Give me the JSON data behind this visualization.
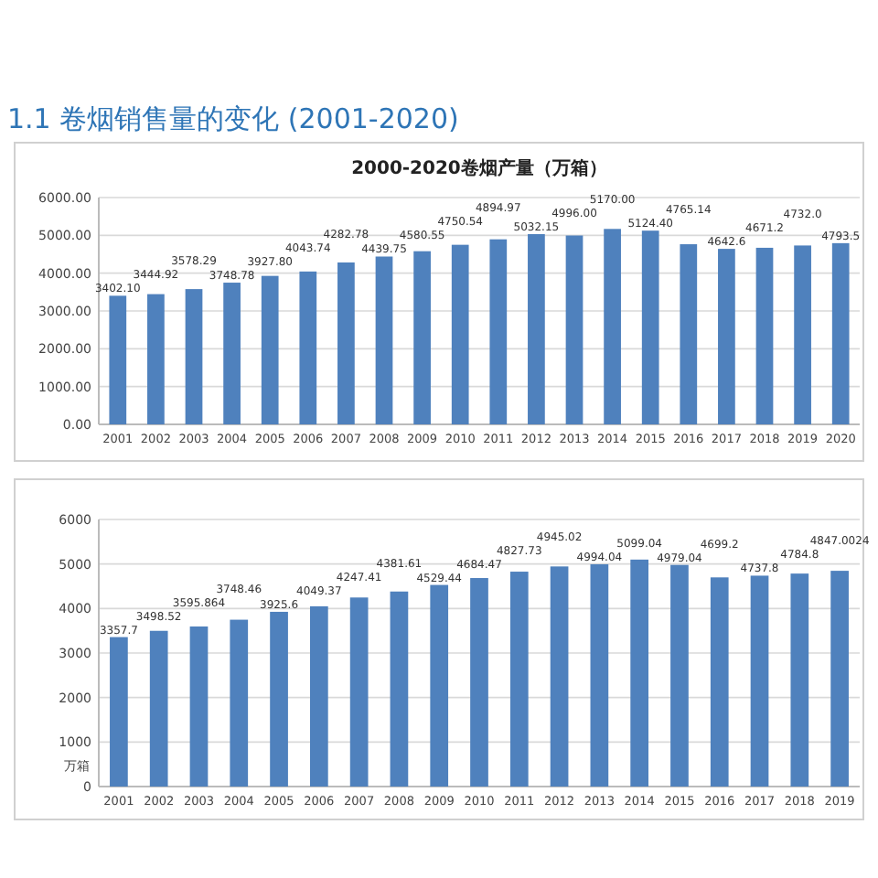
{
  "chart_data": [
    {
      "type": "bar",
      "title": "1.1 卷烟销售量的变化 (2001-2020)",
      "subtitle": "2000-2020卷烟产量（万箱）",
      "categories": [
        "2001",
        "2002",
        "2003",
        "2004",
        "2005",
        "2006",
        "2007",
        "2008",
        "2009",
        "2010",
        "2011",
        "2012",
        "2013",
        "2014",
        "2015",
        "2016",
        "2017",
        "2018",
        "2019",
        "2020"
      ],
      "values": [
        3402.1,
        3444.92,
        3578.29,
        3748.78,
        3927.8,
        4043.74,
        4282.78,
        4439.75,
        4580.55,
        4750.54,
        4894.97,
        5032.15,
        4996.0,
        5170.0,
        5124.4,
        4765.14,
        4642.6,
        4671.2,
        4732.0,
        4793.5
      ],
      "value_labels": [
        "3402.10",
        "3444.92",
        "3578.29",
        "3748.78",
        "3927.80",
        "4043.74",
        "4282.78",
        "4439.75",
        "4580.55",
        "4750.54",
        "4894.97",
        "5032.15",
        "4996.00",
        "5170.00",
        "5124.40",
        "4765.14",
        "4642.6",
        "4671.2",
        "4732.0",
        "4793.5"
      ],
      "color": "#4f81bd",
      "ylim": [
        0,
        6000
      ],
      "yticks": [
        {
          "value": 0,
          "label": "0.00"
        },
        {
          "value": 1000,
          "label": "1000.00"
        },
        {
          "value": 2000,
          "label": "2000.00"
        },
        {
          "value": 3000,
          "label": "3000.00"
        },
        {
          "value": 4000,
          "label": "4000.00"
        },
        {
          "value": 5000,
          "label": "5000.00"
        },
        {
          "value": 6000,
          "label": "6000.00"
        }
      ],
      "grid": "y"
    },
    {
      "type": "bar",
      "ylabel": "万箱",
      "categories": [
        "2001",
        "2002",
        "2003",
        "2004",
        "2005",
        "2006",
        "2007",
        "2008",
        "2009",
        "2010",
        "2011",
        "2012",
        "2013",
        "2014",
        "2015",
        "2016",
        "2017",
        "2018",
        "2019"
      ],
      "values": [
        3357.7,
        3498.52,
        3595.864,
        3748.46,
        3925.6,
        4049.37,
        4247.41,
        4381.61,
        4529.44,
        4684.47,
        4827.73,
        4945.02,
        4994.04,
        5099.04,
        4979.04,
        4699.2,
        4737.8,
        4784.8,
        4847.0024
      ],
      "value_labels": [
        "3357.7",
        "3498.52",
        "3595.864",
        "3748.46",
        "3925.6",
        "4049.37",
        "4247.41",
        "4381.61",
        "4529.44",
        "4684.47",
        "4827.73",
        "4945.02",
        "4994.04",
        "5099.04",
        "4979.04",
        "4699.2",
        "4737.8",
        "4784.8",
        "4847.0024"
      ],
      "color": "#4f81bd",
      "ylim": [
        0,
        6000
      ],
      "yticks": [
        0,
        1000,
        2000,
        3000,
        4000,
        5000,
        6000
      ],
      "grid": "y"
    }
  ]
}
